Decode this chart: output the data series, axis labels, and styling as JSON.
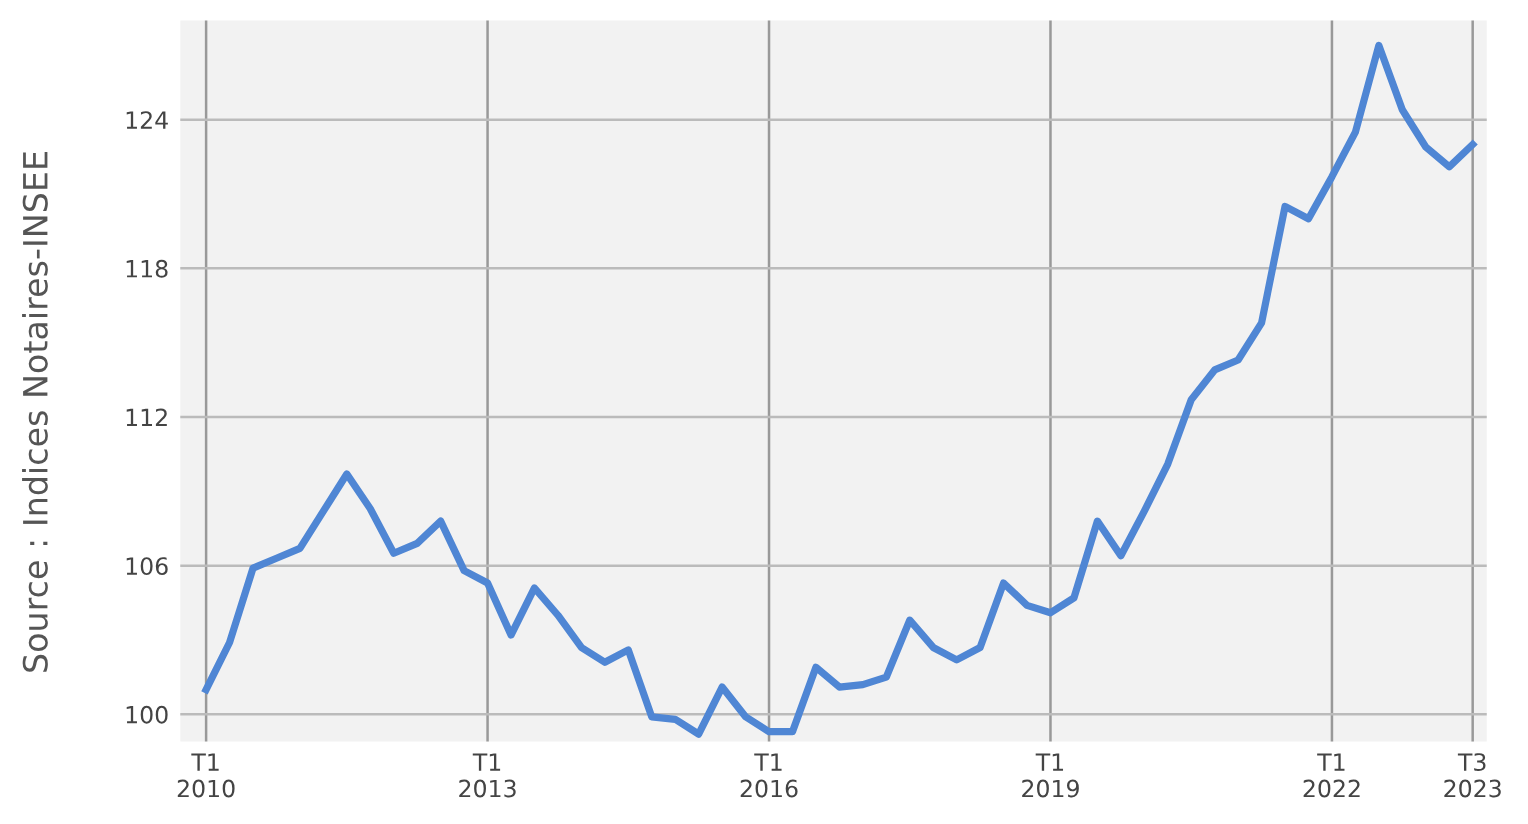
{
  "chart_data": {
    "type": "line",
    "annotations": [
      "Source : Indices Notaires-INSEE"
    ],
    "categories": [
      "T1\n2010",
      null,
      null,
      null,
      null,
      null,
      null,
      null,
      null,
      null,
      null,
      null,
      "T1\n2013",
      null,
      null,
      null,
      null,
      null,
      null,
      null,
      null,
      null,
      null,
      null,
      "T1\n2016",
      null,
      null,
      null,
      null,
      null,
      null,
      null,
      null,
      null,
      null,
      null,
      "T1\n2019",
      null,
      null,
      null,
      null,
      null,
      null,
      null,
      null,
      null,
      null,
      null,
      "T1\n2022",
      null,
      null,
      null,
      null,
      null,
      "T3\n2023"
    ],
    "series": [
      {
        "color": "#4f86d4",
        "values": [
          101.0,
          102.9,
          105.9,
          106.3,
          106.7,
          108.2,
          109.7,
          108.3,
          106.5,
          106.9,
          107.8,
          105.8,
          105.3,
          103.2,
          105.1,
          104.0,
          102.7,
          102.1,
          102.6,
          99.9,
          99.8,
          99.2,
          101.1,
          99.9,
          99.3,
          99.3,
          101.9,
          101.1,
          101.2,
          101.5,
          103.8,
          102.7,
          102.2,
          102.7,
          105.3,
          104.4,
          104.1,
          104.7,
          107.8,
          106.4,
          108.2,
          110.1,
          112.7,
          113.9,
          114.3,
          115.8,
          120.5,
          120.0,
          121.7,
          123.5,
          127.0,
          124.4,
          122.9,
          122.1,
          123.0
        ]
      }
    ],
    "ylim": [
      98.9,
      128
    ],
    "yticks": [
      100,
      106,
      112,
      118,
      124
    ],
    "grid": true,
    "marker": "none",
    "line_style": "solid"
  }
}
